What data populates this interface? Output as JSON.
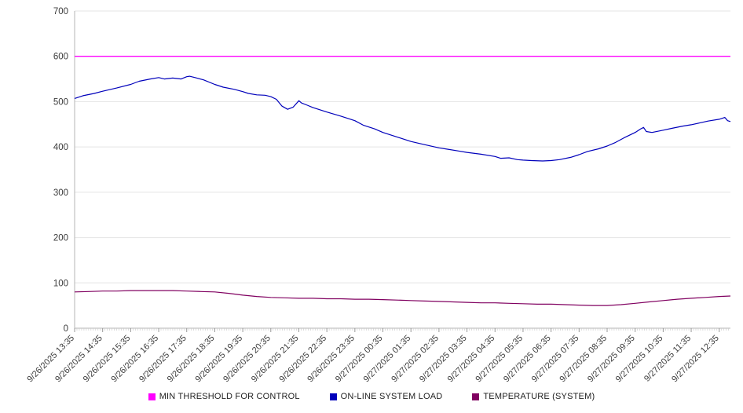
{
  "page": {
    "background": "#ffffff"
  },
  "chart_data": {
    "type": "line",
    "title": "",
    "xlabel": "",
    "ylabel": "",
    "ylim": [
      0,
      700
    ],
    "yticks": [
      0,
      100,
      200,
      300,
      400,
      500,
      600,
      700
    ],
    "x_max": 23.4,
    "grid": true,
    "legend_position": "bottom",
    "categories": [
      "9/26/2025 13:35",
      "9/26/2025 14:35",
      "9/26/2025 15:35",
      "9/26/2025 16:35",
      "9/26/2025 17:35",
      "9/26/2025 18:35",
      "9/26/2025 19:35",
      "9/26/2025 20:35",
      "9/26/2025 21:35",
      "9/26/2025 22:35",
      "9/26/2025 23:35",
      "9/27/2025 00:35",
      "9/27/2025 01:35",
      "9/27/2025 02:35",
      "9/27/2025 03:35",
      "9/27/2025 04:35",
      "9/27/2025 05:35",
      "9/27/2025 06:35",
      "9/27/2025 07:35",
      "9/27/2025 08:35",
      "9/27/2025 09:35",
      "9/27/2025 10:35",
      "9/27/2025 11:35",
      "9/27/2025 12:35"
    ],
    "series": [
      {
        "name": "MIN THRESHOLD FOR CONTROL",
        "color": "#ff00ff",
        "width": 1.4,
        "points": [
          [
            0,
            600
          ],
          [
            23.4,
            600
          ]
        ]
      },
      {
        "name": "ON-LINE SYSTEM LOAD",
        "color": "#0000bb",
        "width": 1.2,
        "points": [
          [
            0,
            507
          ],
          [
            0.3,
            513
          ],
          [
            0.7,
            518
          ],
          [
            1,
            523
          ],
          [
            1.5,
            530
          ],
          [
            2,
            538
          ],
          [
            2.3,
            545
          ],
          [
            2.7,
            550
          ],
          [
            3,
            553
          ],
          [
            3.2,
            550
          ],
          [
            3.5,
            552
          ],
          [
            3.8,
            550
          ],
          [
            4,
            555
          ],
          [
            4.1,
            556
          ],
          [
            4.3,
            553
          ],
          [
            4.6,
            548
          ],
          [
            5,
            538
          ],
          [
            5.3,
            532
          ],
          [
            5.7,
            527
          ],
          [
            6,
            522
          ],
          [
            6.2,
            518
          ],
          [
            6.5,
            515
          ],
          [
            6.8,
            514
          ],
          [
            7,
            511
          ],
          [
            7.2,
            505
          ],
          [
            7.4,
            490
          ],
          [
            7.6,
            483
          ],
          [
            7.8,
            488
          ],
          [
            8,
            502
          ],
          [
            8.1,
            497
          ],
          [
            8.3,
            492
          ],
          [
            8.5,
            487
          ],
          [
            9,
            477
          ],
          [
            9.5,
            468
          ],
          [
            10,
            458
          ],
          [
            10.3,
            448
          ],
          [
            10.7,
            440
          ],
          [
            11,
            432
          ],
          [
            11.5,
            422
          ],
          [
            12,
            412
          ],
          [
            12.5,
            405
          ],
          [
            13,
            398
          ],
          [
            13.3,
            395
          ],
          [
            13.7,
            391
          ],
          [
            14,
            388
          ],
          [
            14.5,
            384
          ],
          [
            15,
            379
          ],
          [
            15.2,
            375
          ],
          [
            15.5,
            376
          ],
          [
            15.8,
            372
          ],
          [
            16,
            371
          ],
          [
            16.3,
            370
          ],
          [
            16.7,
            369
          ],
          [
            17,
            370
          ],
          [
            17.3,
            372
          ],
          [
            17.7,
            377
          ],
          [
            18,
            383
          ],
          [
            18.3,
            390
          ],
          [
            18.7,
            396
          ],
          [
            19,
            402
          ],
          [
            19.3,
            410
          ],
          [
            19.6,
            420
          ],
          [
            20,
            432
          ],
          [
            20.2,
            440
          ],
          [
            20.3,
            443
          ],
          [
            20.4,
            434
          ],
          [
            20.6,
            432
          ],
          [
            21,
            437
          ],
          [
            21.3,
            441
          ],
          [
            21.7,
            446
          ],
          [
            22,
            449
          ],
          [
            22.3,
            453
          ],
          [
            22.6,
            457
          ],
          [
            23,
            461
          ],
          [
            23.2,
            465
          ],
          [
            23.3,
            458
          ],
          [
            23.4,
            456
          ]
        ]
      },
      {
        "name": "TEMPERATURE (SYSTEM)",
        "color": "#800060",
        "width": 1.2,
        "points": [
          [
            0,
            80
          ],
          [
            0.5,
            81
          ],
          [
            1,
            82
          ],
          [
            1.5,
            82
          ],
          [
            2,
            83
          ],
          [
            2.5,
            83
          ],
          [
            3,
            83
          ],
          [
            3.5,
            83
          ],
          [
            4,
            82
          ],
          [
            4.5,
            81
          ],
          [
            5,
            80
          ],
          [
            5.5,
            77
          ],
          [
            6,
            73
          ],
          [
            6.5,
            70
          ],
          [
            7,
            68
          ],
          [
            7.5,
            67
          ],
          [
            8,
            66
          ],
          [
            8.5,
            66
          ],
          [
            9,
            65
          ],
          [
            9.5,
            65
          ],
          [
            10,
            64
          ],
          [
            10.5,
            64
          ],
          [
            11,
            63
          ],
          [
            11.5,
            62
          ],
          [
            12,
            61
          ],
          [
            12.5,
            60
          ],
          [
            13,
            59
          ],
          [
            13.5,
            58
          ],
          [
            14,
            57
          ],
          [
            14.5,
            56
          ],
          [
            15,
            56
          ],
          [
            15.5,
            55
          ],
          [
            16,
            54
          ],
          [
            16.5,
            53
          ],
          [
            17,
            53
          ],
          [
            17.5,
            52
          ],
          [
            18,
            51
          ],
          [
            18.5,
            50
          ],
          [
            19,
            50
          ],
          [
            19.5,
            52
          ],
          [
            20,
            55
          ],
          [
            20.5,
            58
          ],
          [
            21,
            61
          ],
          [
            21.5,
            64
          ],
          [
            22,
            66
          ],
          [
            22.5,
            68
          ],
          [
            23,
            70
          ],
          [
            23.4,
            71
          ]
        ]
      }
    ]
  }
}
